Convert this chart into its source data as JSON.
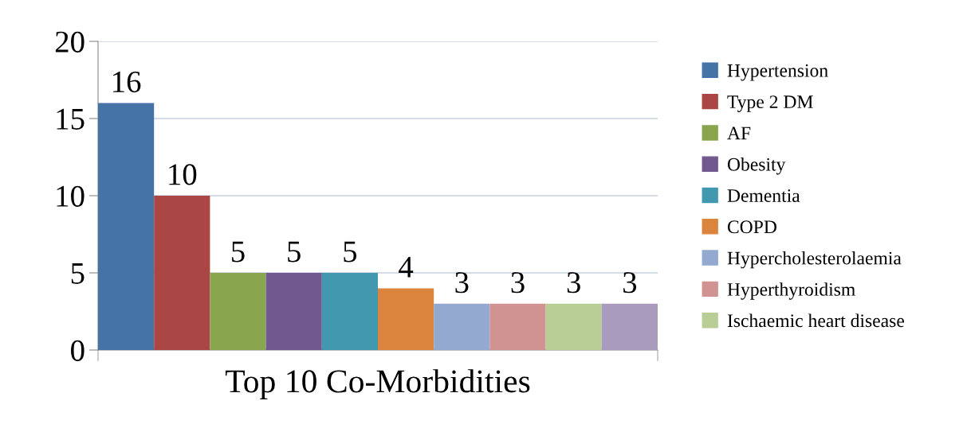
{
  "chart_data": {
    "type": "bar",
    "xlabel": "Top 10 Co-Morbidities",
    "categories": [
      null,
      null,
      null,
      null,
      null,
      null,
      null,
      null,
      null,
      null
    ],
    "series": [
      {
        "name": "Hypertension",
        "color": "#4572a7",
        "values": [
          16,
          null,
          null,
          null,
          null,
          null,
          null,
          null,
          null,
          null
        ]
      },
      {
        "name": "Type 2 DM",
        "color": "#aa4643",
        "values": [
          null,
          10,
          null,
          null,
          null,
          null,
          null,
          null,
          null,
          null
        ]
      },
      {
        "name": "AF",
        "color": "#89a54e",
        "values": [
          null,
          null,
          5,
          null,
          null,
          null,
          null,
          null,
          null,
          null
        ]
      },
      {
        "name": "Obesity",
        "color": "#71588f",
        "values": [
          null,
          null,
          null,
          5,
          null,
          null,
          null,
          null,
          null,
          null
        ]
      },
      {
        "name": "Dementia",
        "color": "#4198af",
        "values": [
          null,
          null,
          null,
          null,
          5,
          null,
          null,
          null,
          null,
          null
        ]
      },
      {
        "name": "COPD",
        "color": "#db843d",
        "values": [
          null,
          null,
          null,
          null,
          null,
          4,
          null,
          null,
          null,
          null
        ]
      },
      {
        "name": "Hypercholesterolaemia",
        "color": "#93a9cf",
        "values": [
          null,
          null,
          null,
          null,
          null,
          null,
          3,
          null,
          null,
          null
        ]
      },
      {
        "name": "Hyperthyroidism",
        "color": "#d19392",
        "values": [
          null,
          null,
          null,
          null,
          null,
          null,
          null,
          3,
          null,
          null
        ]
      },
      {
        "name": "Ischaemic heart disease",
        "color": "#b9cd96",
        "values": [
          null,
          null,
          null,
          null,
          null,
          null,
          null,
          null,
          3,
          null
        ]
      },
      {
        "color": "#a99bbd",
        "values": [
          null,
          null,
          null,
          null,
          null,
          null,
          null,
          null,
          null,
          3
        ]
      }
    ],
    "ylim": [
      0,
      20
    ],
    "yticks": [
      0,
      5,
      10,
      15,
      20
    ],
    "grid": "y",
    "legend": "right",
    "data_labels": true
  }
}
